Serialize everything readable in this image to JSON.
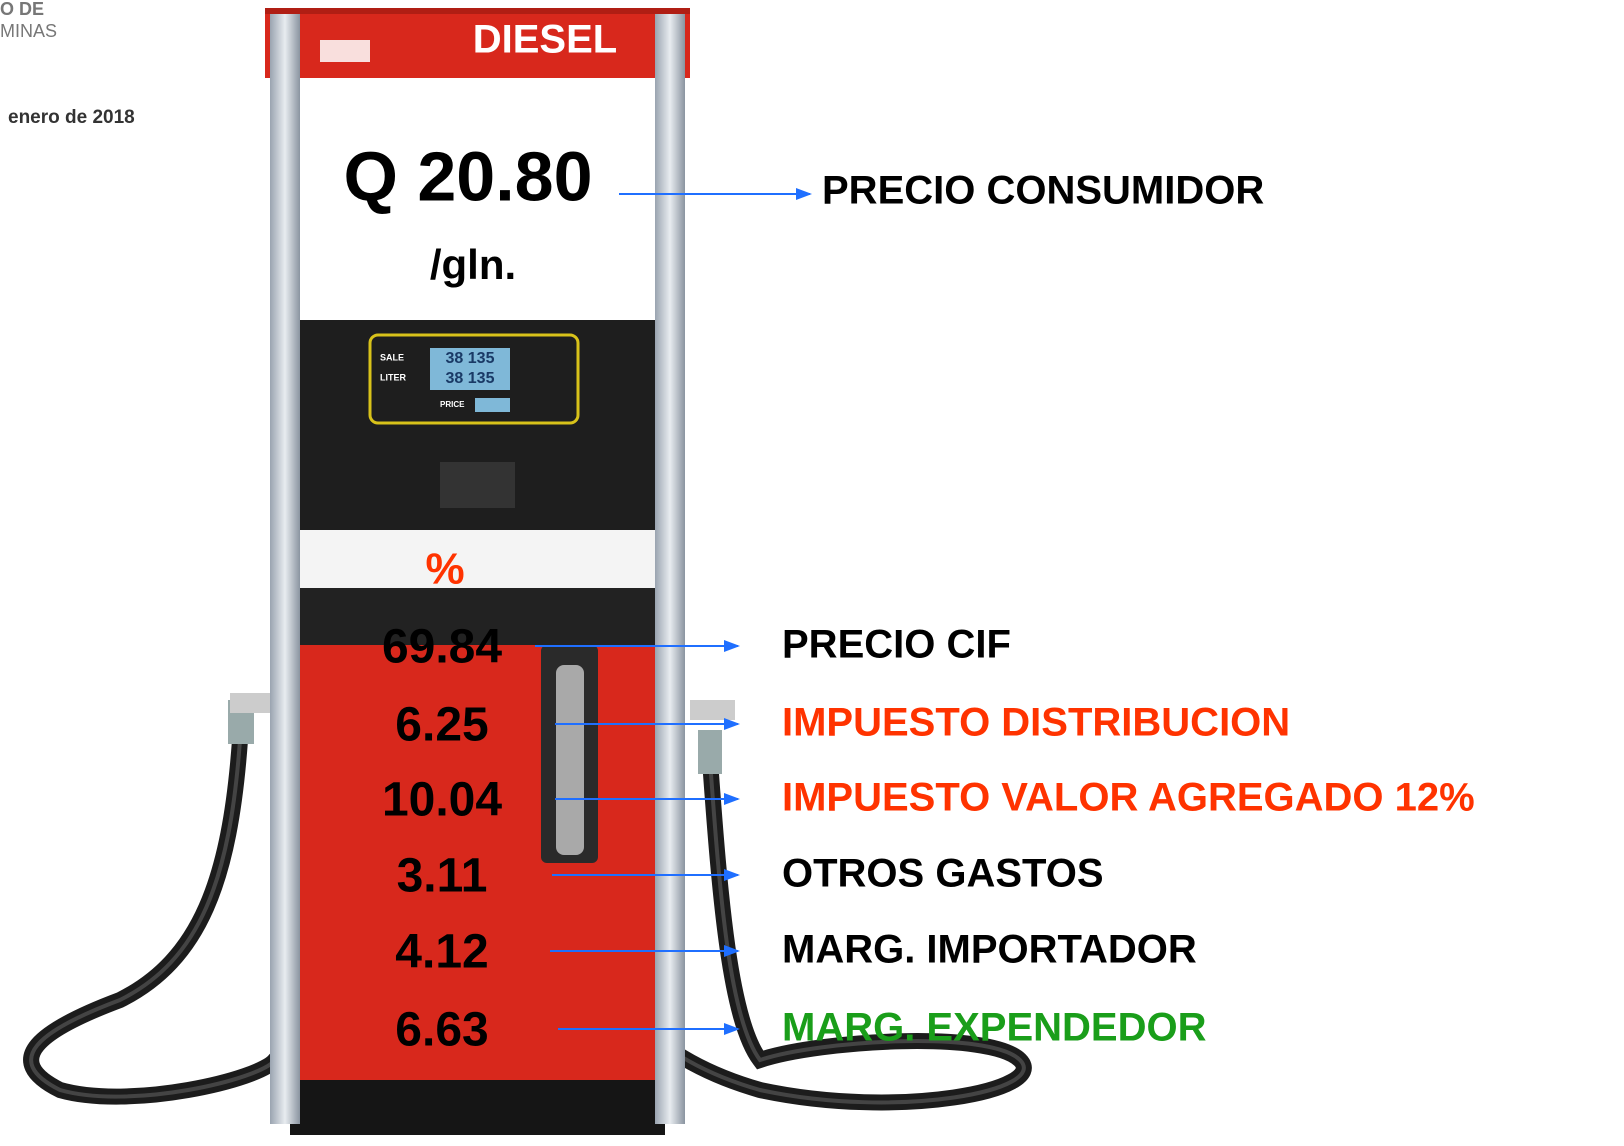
{
  "header": {
    "logo_lines": [
      "O DE",
      "MINAS"
    ],
    "date": "enero de 2018"
  },
  "pump": {
    "fuel": "DIESEL",
    "price": "Q 20.80",
    "unit": "/gln.",
    "price_label": "PRECIO CONSUMIDOR",
    "display": {
      "sale": "SALE",
      "liter": "LITER",
      "price": "PRICE",
      "readings": [
        "38 135",
        "38 135"
      ]
    }
  },
  "breakdown": {
    "heading": "%",
    "rows": [
      {
        "value": "69.84",
        "label": "PRECIO CIF",
        "color": "#000000"
      },
      {
        "value": "6.25",
        "label": "IMPUESTO DISTRIBUCION",
        "color": "#ff3300"
      },
      {
        "value": "10.04",
        "label": "IMPUESTO VALOR AGREGADO 12%",
        "color": "#ff3300"
      },
      {
        "value": "3.11",
        "label": "OTROS GASTOS",
        "color": "#000000"
      },
      {
        "value": "4.12",
        "label": "MARG. IMPORTADOR",
        "color": "#000000"
      },
      {
        "value": "6.63",
        "label": "MARG. EXPENDEDOR",
        "color": "#1a9e1a"
      }
    ]
  }
}
